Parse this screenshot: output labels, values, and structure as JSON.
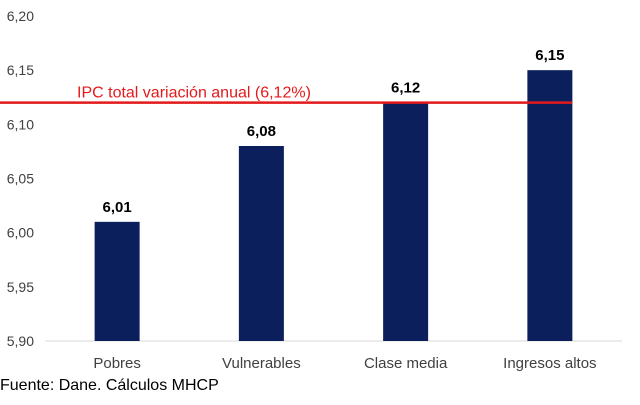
{
  "chart_data": {
    "type": "bar",
    "title": "",
    "xlabel": "",
    "ylabel": "",
    "categories": [
      "Pobres",
      "Vulnerables",
      "Clase media",
      "Ingresos altos"
    ],
    "values": [
      6.01,
      6.08,
      6.12,
      6.15
    ],
    "data_labels": [
      "6,01",
      "6,08",
      "6,12",
      "6,15"
    ],
    "ylim": [
      5.9,
      6.2
    ],
    "yticks": [
      5.9,
      5.95,
      6.0,
      6.05,
      6.1,
      6.15,
      6.2
    ],
    "ytick_labels": [
      "5,90",
      "5,95",
      "6,00",
      "6,05",
      "6,10",
      "6,15",
      "6,20"
    ],
    "grid": false,
    "bar_color": "#0b1f5c",
    "reference_line": {
      "value": 6.12,
      "label": "IPC total variación anual (6,12%)",
      "color": "#e31a1c"
    }
  },
  "source": "Fuente: Dane. Cálculos MHCP"
}
